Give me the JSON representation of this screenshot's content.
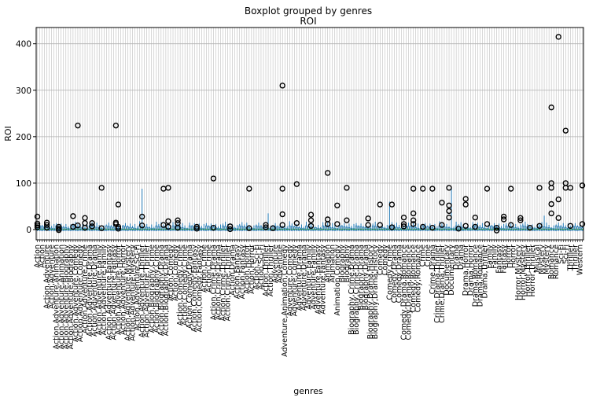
{
  "chart_data": {
    "type": "box",
    "suptitle": "Boxplot grouped by genres",
    "title": "ROI",
    "xlabel": "genres",
    "ylabel": "ROI",
    "ylim": [
      -22,
      435
    ],
    "yticks": [
      0,
      100,
      200,
      300,
      400
    ],
    "grid": true,
    "num_groups": 230,
    "box_color": "#1f77b4",
    "median_color": "#2ca02c",
    "flier_color": "#000000",
    "x_tick_labels_sample": [
      "Action",
      "Action,Adventure",
      "Action,Adventure,Animation",
      "Action,Adventure,Biography",
      "Action,Adventure,Comedy",
      "Action,Adventure,Crime",
      "Action,Adventure,Drama",
      "Action,Adventure,Family",
      "Action,Adventure,Fantasy",
      "Action,Adventure,Horror",
      "Action,Adventure,Mystery",
      "Action,Adventure,Sci-Fi",
      "Action,Adventure,Thriller",
      "Action,Biography,Crime",
      "Action,Biography,Drama",
      "Action,Comedy",
      "Action,Comedy,Crime",
      "Action,Comedy,Drama",
      "Action,Comedy,Fantasy",
      "Action,Crime",
      "Action,Crime,Drama",
      "Action,Crime,Thriller",
      "Action,Drama",
      "Action,Fantasy",
      "Action,Horror",
      "Action,Sci-Fi",
      "Action,Thriller",
      "Adventure",
      "Adventure,Animation,Comedy",
      "Adventure,Comedy",
      "Adventure,Drama",
      "Adventure,Family",
      "Adventure,Fantasy",
      "Animation",
      "Animation,Comedy",
      "Biography",
      "Biography,Crime,Drama",
      "Biography,Drama",
      "Biography,Drama,History",
      "Comedy",
      "Comedy,Crime",
      "Comedy,Drama",
      "Comedy,Drama,Romance",
      "Comedy,Romance",
      "Crime",
      "Crime,Drama",
      "Crime,Drama,Thriller",
      "Documentary",
      "Drama",
      "Drama,Horror",
      "Drama,Romance",
      "Drama,Thriller",
      "Family",
      "Fantasy",
      "Horror",
      "Horror,Mystery",
      "Horror,Thriller",
      "Musical",
      "Mystery",
      "Romance",
      "Sci-Fi",
      "Thriller",
      "Western"
    ],
    "outliers": [
      {
        "group": 0,
        "values": [
          28,
          13,
          9,
          5
        ]
      },
      {
        "group": 4,
        "values": [
          15,
          10,
          4
        ]
      },
      {
        "group": 9,
        "values": [
          6,
          2,
          -1
        ]
      },
      {
        "group": 15,
        "values": [
          29,
          6
        ]
      },
      {
        "group": 17,
        "values": [
          224,
          9
        ]
      },
      {
        "group": 20,
        "values": [
          25,
          14,
          4
        ]
      },
      {
        "group": 23,
        "values": [
          14,
          7
        ]
      },
      {
        "group": 27,
        "values": [
          90,
          3
        ]
      },
      {
        "group": 33,
        "values": [
          224,
          15,
          12
        ]
      },
      {
        "group": 34,
        "values": [
          54,
          6,
          2
        ]
      },
      {
        "group": 44,
        "values": [
          28,
          9
        ]
      },
      {
        "group": 53,
        "values": [
          88,
          10
        ]
      },
      {
        "group": 55,
        "values": [
          90,
          18,
          6
        ]
      },
      {
        "group": 59,
        "values": [
          20,
          14,
          4
        ]
      },
      {
        "group": 67,
        "values": [
          6,
          2
        ]
      },
      {
        "group": 74,
        "values": [
          110,
          4
        ]
      },
      {
        "group": 81,
        "values": [
          7,
          1
        ]
      },
      {
        "group": 89,
        "values": [
          88,
          3
        ]
      },
      {
        "group": 96,
        "values": [
          10,
          5
        ]
      },
      {
        "group": 99,
        "values": [
          3
        ]
      },
      {
        "group": 103,
        "values": [
          310,
          88,
          33,
          10
        ]
      },
      {
        "group": 109,
        "values": [
          98,
          14
        ]
      },
      {
        "group": 115,
        "values": [
          32,
          20,
          8
        ]
      },
      {
        "group": 122,
        "values": [
          122,
          22,
          12
        ]
      },
      {
        "group": 126,
        "values": [
          52,
          12
        ]
      },
      {
        "group": 130,
        "values": [
          90,
          20
        ]
      },
      {
        "group": 139,
        "values": [
          24,
          10
        ]
      },
      {
        "group": 144,
        "values": [
          54,
          10
        ]
      },
      {
        "group": 149,
        "values": [
          54,
          5
        ]
      },
      {
        "group": 154,
        "values": [
          26,
          12,
          7
        ]
      },
      {
        "group": 158,
        "values": [
          88,
          35,
          20,
          12
        ]
      },
      {
        "group": 162,
        "values": [
          88,
          6
        ]
      },
      {
        "group": 166,
        "values": [
          88,
          4
        ]
      },
      {
        "group": 170,
        "values": [
          58,
          10
        ]
      },
      {
        "group": 173,
        "values": [
          90,
          52,
          40,
          26
        ]
      },
      {
        "group": 177,
        "values": [
          2
        ]
      },
      {
        "group": 180,
        "values": [
          66,
          54,
          8
        ]
      },
      {
        "group": 184,
        "values": [
          26,
          6
        ]
      },
      {
        "group": 189,
        "values": [
          88,
          12
        ]
      },
      {
        "group": 193,
        "values": [
          4,
          -2
        ]
      },
      {
        "group": 196,
        "values": [
          28,
          22
        ]
      },
      {
        "group": 199,
        "values": [
          88,
          10
        ]
      },
      {
        "group": 203,
        "values": [
          25,
          20
        ]
      },
      {
        "group": 207,
        "values": [
          4
        ]
      },
      {
        "group": 211,
        "values": [
          90,
          8
        ]
      },
      {
        "group": 216,
        "values": [
          263,
          100,
          90,
          55,
          35
        ]
      },
      {
        "group": 219,
        "values": [
          415,
          65,
          25
        ]
      },
      {
        "group": 222,
        "values": [
          213,
          100,
          90
        ]
      },
      {
        "group": 224,
        "values": [
          90,
          8
        ]
      },
      {
        "group": 229,
        "values": [
          95,
          12
        ]
      }
    ],
    "tall_whiskers": [
      {
        "group": 44,
        "value": 88
      },
      {
        "group": 97,
        "value": 35
      },
      {
        "group": 148,
        "value": 60
      },
      {
        "group": 174,
        "value": 90
      },
      {
        "group": 213,
        "value": 30
      }
    ]
  }
}
